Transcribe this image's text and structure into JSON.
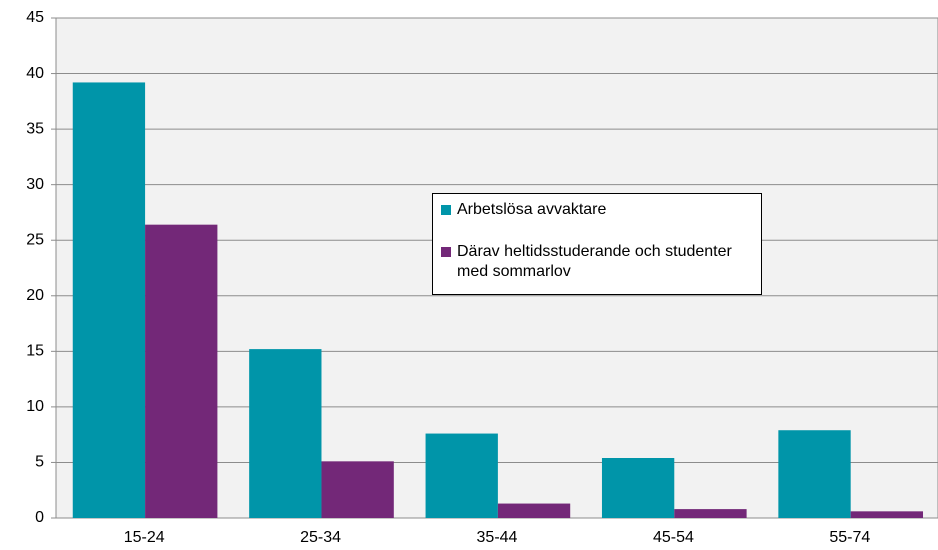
{
  "chart_data": {
    "type": "bar",
    "categories": [
      "15-24",
      "25-34",
      "35-44",
      "45-54",
      "55-74"
    ],
    "series": [
      {
        "name": "Arbetslösa avvaktare",
        "color": "#0095a9",
        "values": [
          39.2,
          15.2,
          7.6,
          5.4,
          7.9
        ]
      },
      {
        "name": "Därav heltidsstuderande och studenter med sommarlov",
        "color": "#732878",
        "values": [
          26.4,
          5.1,
          1.3,
          0.8,
          0.6
        ]
      }
    ],
    "ylim": [
      0,
      45
    ],
    "yticks": [
      0,
      5,
      10,
      15,
      20,
      25,
      30,
      35,
      40,
      45
    ],
    "grid": true
  }
}
